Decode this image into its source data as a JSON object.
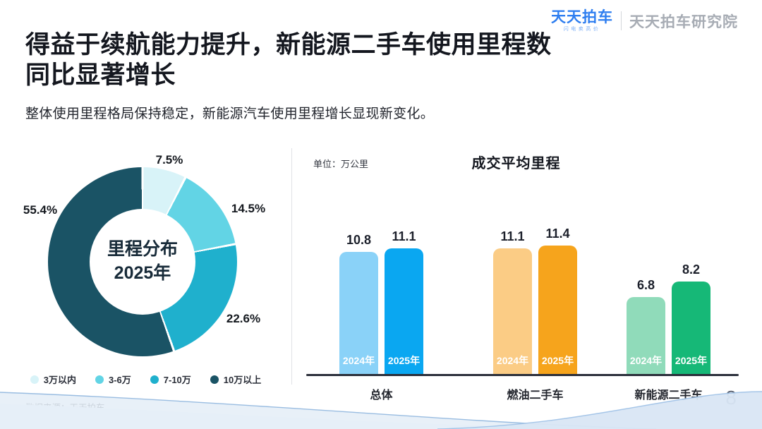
{
  "header": {
    "logo_text": "天天拍车",
    "logo_tagline": "闪电卖高价",
    "brand_right": "天天拍车研究院",
    "logo_color": "#2E7EF0"
  },
  "title": {
    "line1": "得益于续航能力提升，新能源二手车使用里程数",
    "line2": "同比显著增长"
  },
  "subtitle": "整体使用里程格局保持稳定，新能源汽车使用里程增长显现新变化。",
  "footer": {
    "source": "数据来源：天天拍车",
    "page_number": "8"
  },
  "chart_data": [
    {
      "type": "pie",
      "subtype": "donut",
      "center_line1": "里程分布",
      "center_line2": "2025年",
      "labels": [
        "3万以内",
        "3-6万",
        "7-10万",
        "10万以上"
      ],
      "values": [
        7.5,
        14.5,
        22.6,
        55.4
      ],
      "value_unit": "%",
      "colors": [
        "#D8F3F8",
        "#62D4E5",
        "#1FB0CD",
        "#1A5365"
      ],
      "start_angle_deg": 0,
      "direction": "clockwise",
      "legend_position": "bottom"
    },
    {
      "type": "bar",
      "title": "成交平均里程",
      "unit_label": "单位：万公里",
      "categories": [
        "总体",
        "燃油二手车",
        "新能源二手车"
      ],
      "series": [
        {
          "name": "2024年",
          "values": [
            10.8,
            11.1,
            6.8
          ],
          "colors": [
            "#8AD2F8",
            "#FBCC85",
            "#90DBBA"
          ]
        },
        {
          "name": "2025年",
          "values": [
            11.1,
            11.4,
            8.2
          ],
          "colors": [
            "#0AA7F1",
            "#F6A41C",
            "#16B877"
          ]
        }
      ],
      "ylim": [
        0,
        12
      ],
      "value_labels": true,
      "grid": false
    }
  ]
}
